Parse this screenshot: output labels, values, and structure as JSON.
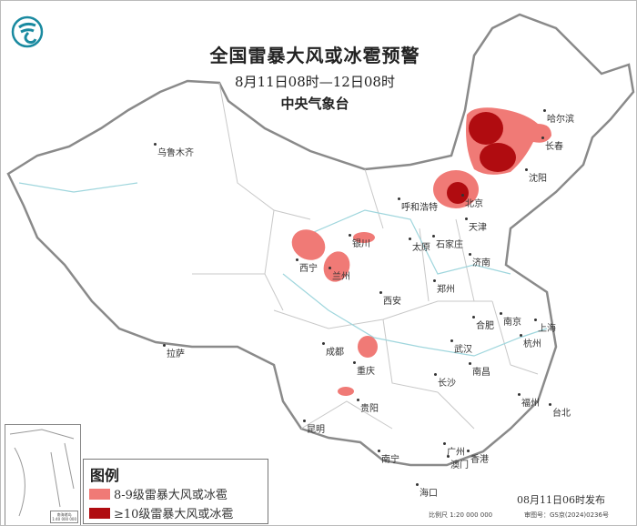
{
  "header": {
    "title": "全国雷暴大风或冰雹预警",
    "period": "8月11日08时—12日08时",
    "issuer": "中央气象台"
  },
  "logo": {
    "icon": "cma-logo",
    "color": "#1a8aa0"
  },
  "cities": [
    "乌鲁木齐",
    "拉萨",
    "西宁",
    "兰州",
    "银川",
    "呼和浩特",
    "北京",
    "天津",
    "石家庄",
    "太原",
    "济南",
    "郑州",
    "西安",
    "成都",
    "重庆",
    "贵阳",
    "昆明",
    "南宁",
    "广州",
    "澳门",
    "香港",
    "海口",
    "长沙",
    "武汉",
    "南昌",
    "合肥",
    "南京",
    "上海",
    "杭州",
    "福州",
    "台北",
    "哈尔滨",
    "长春",
    "沈阳"
  ],
  "legend": {
    "title": "图例",
    "items": [
      {
        "label": "8-9级雷暴大风或冰雹",
        "color": "#f07a76"
      },
      {
        "label": "≥10级雷暴大风或冰雹",
        "color": "#b00c10"
      }
    ]
  },
  "inset": {
    "label": "南海诸岛",
    "scale": "1:40 000 000"
  },
  "footer": {
    "issued": "08月11日06时发布",
    "scale": "比例尺 1:20 000 000",
    "approval": "审图号：GS京(2024)0236号"
  }
}
